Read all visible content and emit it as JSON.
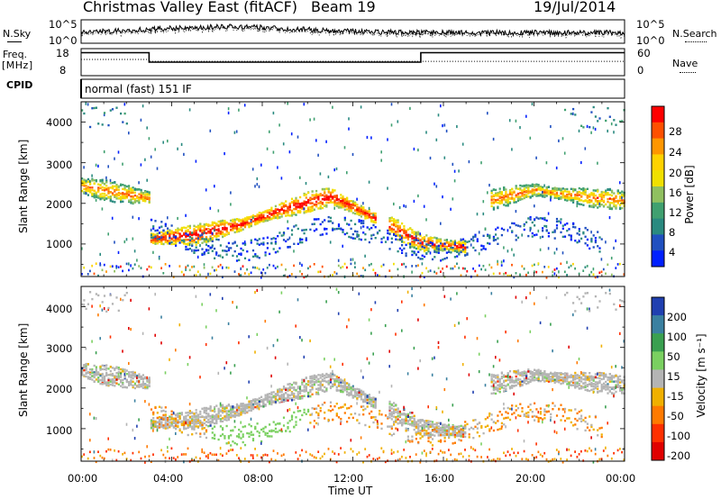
{
  "header": {
    "station": "Christmas Valley East (fitACF)",
    "beam": "Beam 19",
    "date": "19/Jul/2014"
  },
  "side_labels": {
    "nsky": "N.Sky",
    "nsearch": "N.Search",
    "freq": "Freq.",
    "freq_unit": "[MHz]",
    "nave": "Nave",
    "cpid": "CPID",
    "cpid_value": "normal (fast) 151 IF"
  },
  "chart_data": [
    {
      "type": "line",
      "panel": "noise",
      "yleft_ticks": [
        "10^5",
        "10^0"
      ],
      "yright_ticks": [
        "10^5",
        "10^0"
      ],
      "series": [
        {
          "name": "N.Sky",
          "style": "solid"
        },
        {
          "name": "N.Search",
          "style": "dotted"
        }
      ]
    },
    {
      "type": "line",
      "panel": "frequency",
      "yleft_ticks": [
        "18",
        "8"
      ],
      "yright_ticks": [
        "60",
        "0"
      ],
      "series": [
        {
          "name": "Freq.",
          "style": "solid",
          "x": [
            0.0,
            3.0,
            3.0,
            15.0,
            15.0,
            24.0
          ],
          "y": [
            16.5,
            16.5,
            13.0,
            13.0,
            16.5,
            16.5
          ]
        },
        {
          "name": "Nave",
          "style": "dotted",
          "x": [
            0.0,
            3.0,
            3.0,
            24.0
          ],
          "y": [
            14.0,
            14.0,
            13.3,
            13.3
          ]
        }
      ]
    },
    {
      "type": "heatmap",
      "panel": "power",
      "xlim": [
        0,
        24
      ],
      "ylim": [
        200,
        4500
      ],
      "ylabel": "Slant Range [km]",
      "yticks": [
        "1000",
        "2000",
        "3000",
        "4000"
      ],
      "colorbar_label": "Power [dB]",
      "colorbar_ticks": [
        "28",
        "24",
        "20",
        "16",
        "12",
        "8",
        "4"
      ],
      "colorbar_colors": [
        "#ff0000",
        "#ff5000",
        "#ff9600",
        "#ffd200",
        "#f0e000",
        "#90c060",
        "#40a070",
        "#2a8a80",
        "#2050c0",
        "#0020ff"
      ],
      "features": [
        {
          "x": [
            0.0,
            1.5,
            3.0
          ],
          "range_km": [
            2450,
            2300,
            2150
          ],
          "power_db": 20
        },
        {
          "x": [
            3.0,
            5.0,
            7.0,
            9.0,
            11.0,
            13.0
          ],
          "range_km": [
            1150,
            1250,
            1500,
            1900,
            2200,
            1650
          ],
          "power_db": 26
        },
        {
          "x": [
            13.5,
            15.0,
            17.0
          ],
          "range_km": [
            1500,
            1050,
            950
          ],
          "power_db": 24
        },
        {
          "x": [
            18.0,
            20.0,
            22.0,
            24.0
          ],
          "range_km": [
            2100,
            2350,
            2200,
            2100
          ],
          "power_db": 20
        }
      ]
    },
    {
      "type": "heatmap",
      "panel": "velocity",
      "xlim": [
        0,
        24
      ],
      "ylim": [
        200,
        4500
      ],
      "ylabel": "Slant Range [km]",
      "yticks": [
        "1000",
        "2000",
        "3000",
        "4000"
      ],
      "colorbar_label": "Velocity [m s⁻¹]",
      "colorbar_ticks": [
        "200",
        "100",
        "50",
        "15",
        "-15",
        "-50",
        "-100",
        "-200"
      ],
      "colorbar_colors": [
        "#2040b0",
        "#3a80a0",
        "#3aa050",
        "#7ad060",
        "#b4b4b4",
        "#f0b000",
        "#ff7a00",
        "#ff3000",
        "#e00000"
      ]
    }
  ],
  "xaxis": {
    "label": "Time UT",
    "ticks": [
      "00:00",
      "04:00",
      "08:00",
      "12:00",
      "16:00",
      "20:00",
      "00:00"
    ]
  }
}
